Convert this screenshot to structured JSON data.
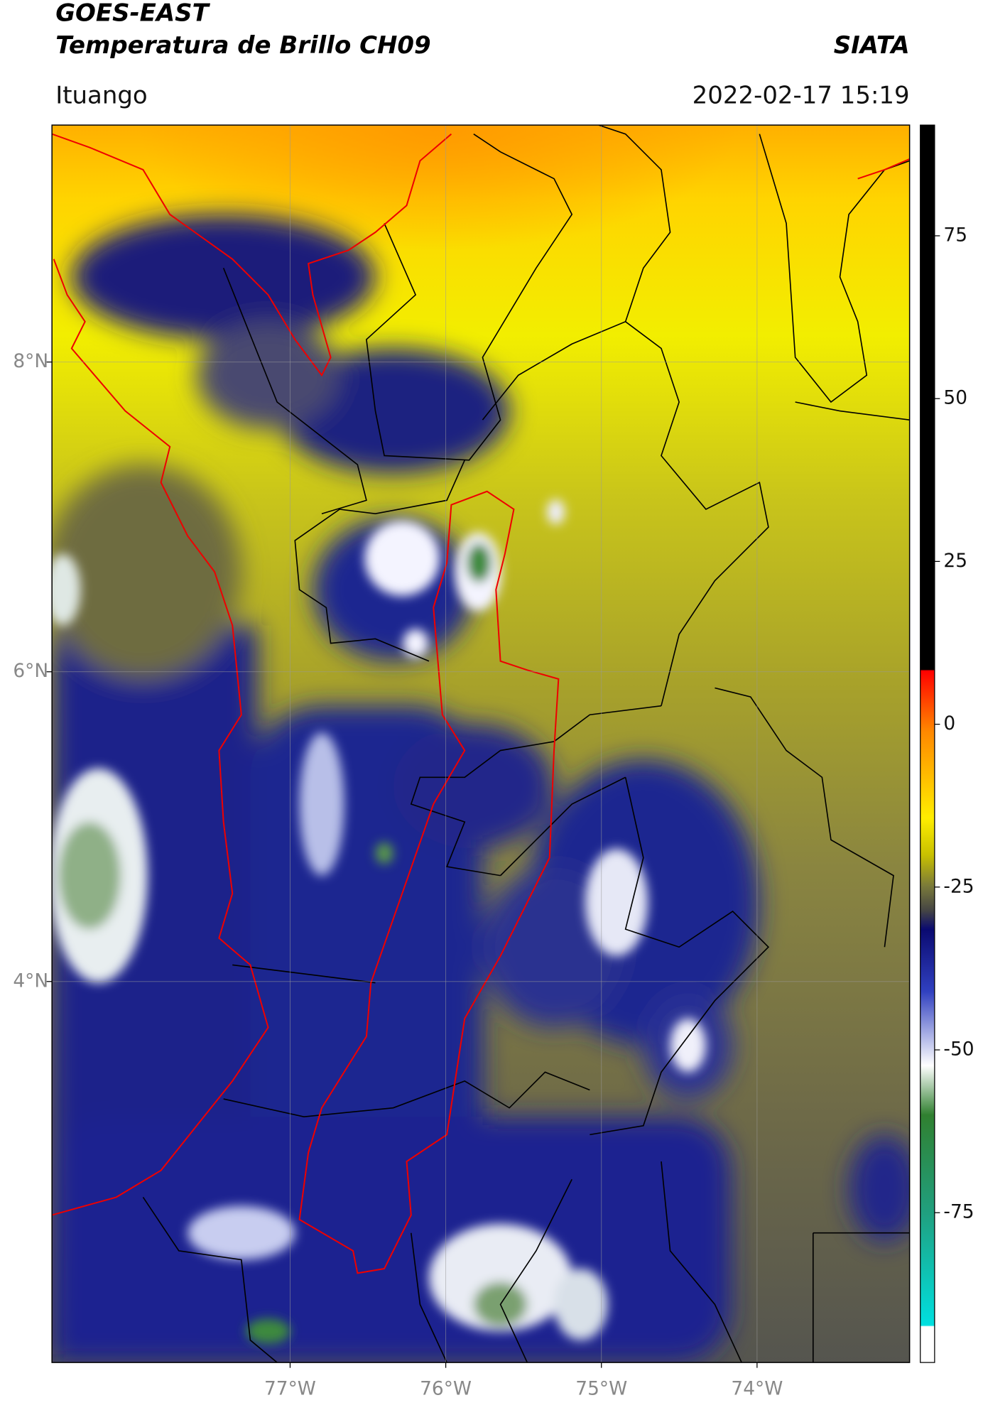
{
  "header": {
    "title": "GOES-EAST",
    "subtitle": "Temperatura de Brillo CH09",
    "source": "SIATA",
    "location": "Ituango",
    "datetime": "2022-02-17 15:19"
  },
  "map": {
    "xlim": [
      -78.53,
      -73.02
    ],
    "ylim": [
      1.54,
      9.53
    ],
    "xticks": [
      {
        "value": -77,
        "label": "77°W"
      },
      {
        "value": -76,
        "label": "76°W"
      },
      {
        "value": -75,
        "label": "75°W"
      },
      {
        "value": -74,
        "label": "74°W"
      }
    ],
    "yticks": [
      {
        "value": 8,
        "label": "8°N"
      },
      {
        "value": 6,
        "label": "6°N"
      },
      {
        "value": 4,
        "label": "4°N"
      }
    ]
  },
  "colorbar": {
    "lim": [
      -98,
      92
    ],
    "ticks": [
      75,
      50,
      25,
      0,
      -25,
      -50,
      -75
    ]
  }
}
